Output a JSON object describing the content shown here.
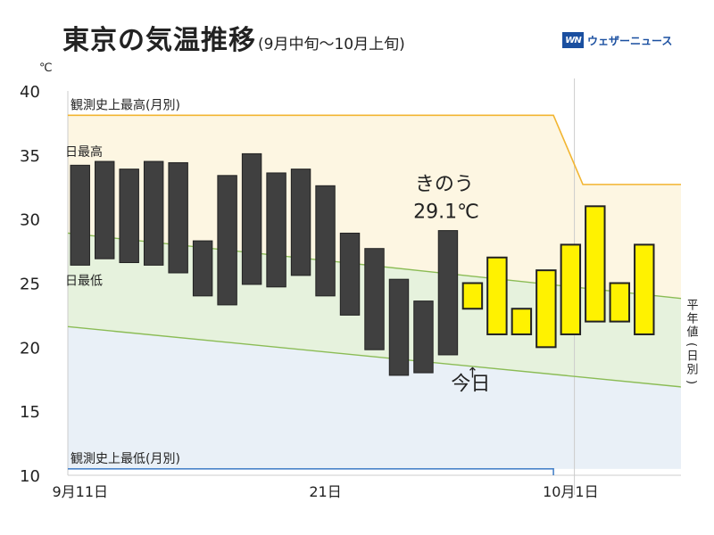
{
  "title": {
    "main": "東京の気温推移",
    "sub": "(9月中旬〜10月上旬)"
  },
  "brand": {
    "logo": "WN",
    "name": "ウェザーニュース"
  },
  "colors": {
    "record_high": "#f2b531",
    "record_low": "#4a84c9",
    "normal": "#8bbc55",
    "observed": "#404040",
    "forecast": "#fff200",
    "zone_hot": "#fdf6e2",
    "zone_mid": "#e6f2dd",
    "zone_cold": "#e9f0f7"
  },
  "chart_data": {
    "type": "bar",
    "unit": "℃",
    "ylim": [
      10,
      40
    ],
    "yticks": [
      10,
      15,
      20,
      25,
      30,
      35,
      40
    ],
    "xlim": [
      0.5,
      25.5
    ],
    "xticks": [
      {
        "day": 1,
        "label": "9月11日"
      },
      {
        "day": 11,
        "label": "21日"
      },
      {
        "day": 21,
        "label": "10月1日"
      }
    ],
    "observed": {
      "name": "observed",
      "days": [
        1,
        2,
        3,
        4,
        5,
        6,
        7,
        8,
        9,
        10,
        11,
        12,
        13,
        14,
        15,
        16
      ],
      "high": [
        34.2,
        34.5,
        33.9,
        34.5,
        34.4,
        28.3,
        33.4,
        35.1,
        33.6,
        33.9,
        32.6,
        28.9,
        27.7,
        25.3,
        23.6,
        29.1
      ],
      "low": [
        26.4,
        26.9,
        26.6,
        26.4,
        25.8,
        24.0,
        23.3,
        24.9,
        24.7,
        25.6,
        24.0,
        22.5,
        19.8,
        17.8,
        18.0,
        19.4
      ]
    },
    "forecast": {
      "name": "forecast",
      "days": [
        17,
        18,
        19,
        20,
        21,
        22,
        23,
        24,
        25
      ],
      "high": [
        25.0,
        27.0,
        23.0,
        26.0,
        28.0,
        31.0,
        25.0,
        28.0,
        0
      ],
      "low": [
        23.0,
        21.0,
        21.0,
        20.0,
        21.0,
        22.0,
        22.0,
        21.0,
        0
      ]
    },
    "record_high": {
      "label": "観測史上最高(月別)",
      "points": [
        [
          0.5,
          38.1
        ],
        [
          20.3,
          38.1
        ],
        [
          21.5,
          32.7
        ],
        [
          25.5,
          32.7
        ]
      ]
    },
    "record_low": {
      "label": "観測史上最低(月別)",
      "points": [
        [
          0.5,
          10.5
        ],
        [
          20.3,
          10.5
        ],
        [
          20.3,
          10.0
        ]
      ]
    },
    "normal_high": {
      "label": "日最高",
      "points": [
        [
          0.5,
          28.9
        ],
        [
          25.5,
          23.8
        ]
      ]
    },
    "normal_low": {
      "label": "日最低",
      "points": [
        [
          0.5,
          21.6
        ],
        [
          25.5,
          16.9
        ]
      ]
    },
    "normal_label": "平年値(日別)",
    "annotation": {
      "line1": "きのう",
      "line2": "29.1℃",
      "arrow": "↑",
      "today": "今日",
      "day": 16,
      "value": 29.1
    }
  }
}
